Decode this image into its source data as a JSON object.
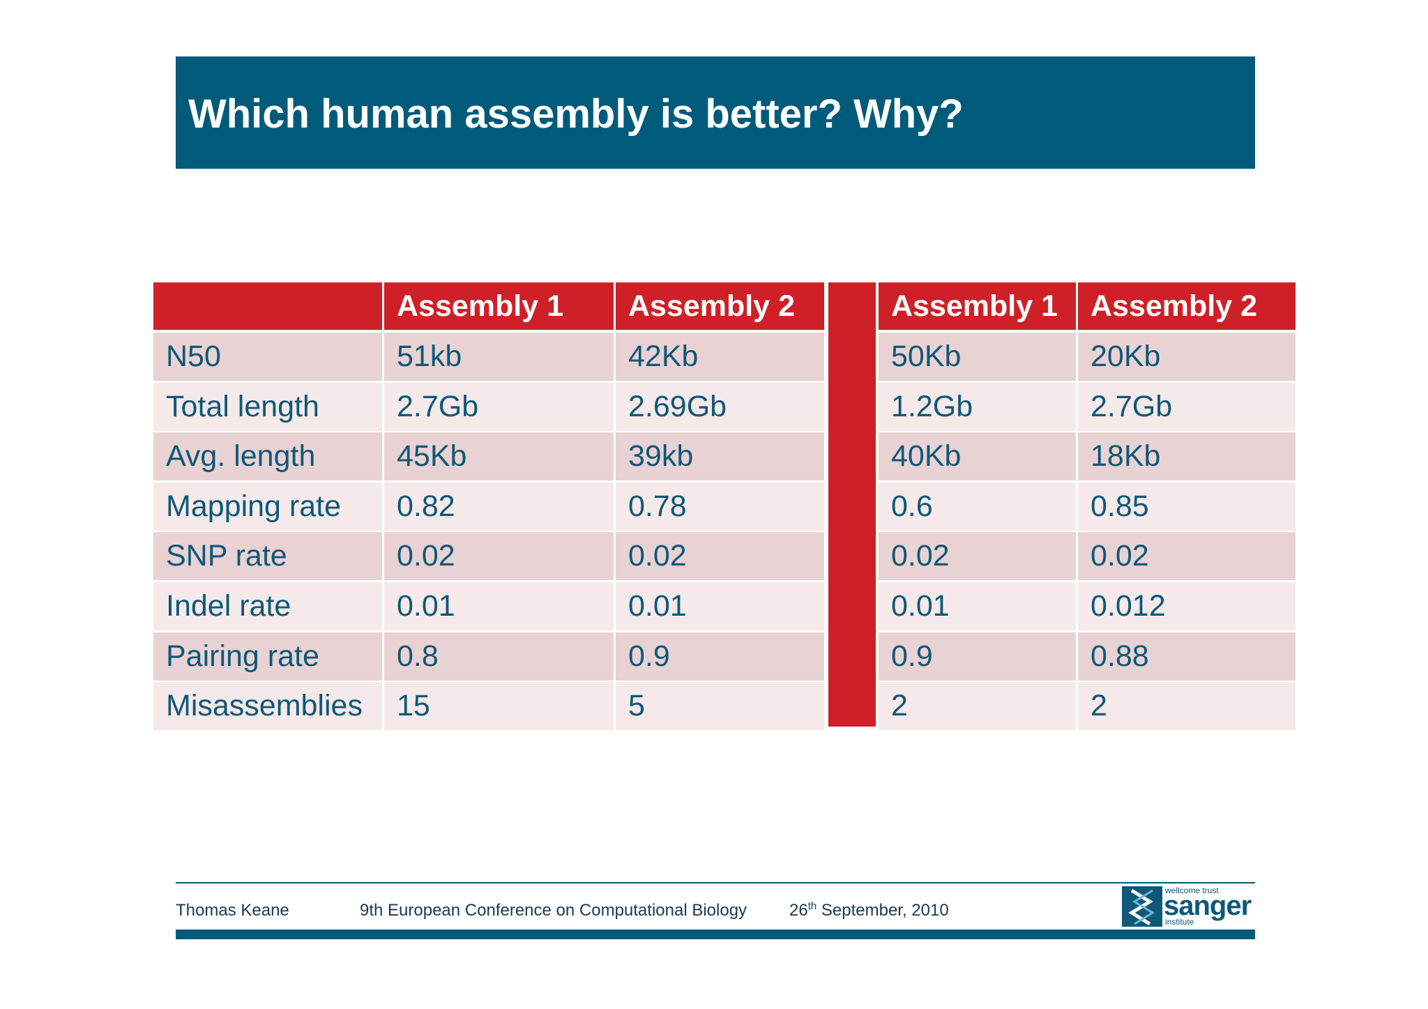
{
  "slide": {
    "title": "Which human assembly is better? Why?"
  },
  "table_left": {
    "headers": [
      "",
      "Assembly 1",
      "Assembly 2"
    ],
    "rows": [
      [
        "N50",
        "51kb",
        "42Kb"
      ],
      [
        "Total length",
        "2.7Gb",
        "2.69Gb"
      ],
      [
        "Avg. length",
        "45Kb",
        "39kb"
      ],
      [
        "Mapping rate",
        "0.82",
        "0.78"
      ],
      [
        "SNP rate",
        "0.02",
        "0.02"
      ],
      [
        "Indel rate",
        "0.01",
        "0.01"
      ],
      [
        "Pairing rate",
        "0.8",
        "0.9"
      ],
      [
        "Misassemblies",
        "15",
        "5"
      ]
    ]
  },
  "table_right": {
    "headers": [
      "Assembly 1",
      "Assembly 2"
    ],
    "rows": [
      [
        "50Kb",
        "20Kb"
      ],
      [
        "1.2Gb",
        "2.7Gb"
      ],
      [
        "40Kb",
        "18Kb"
      ],
      [
        "0.6",
        "0.85"
      ],
      [
        "0.02",
        "0.02"
      ],
      [
        "0.01",
        "0.012"
      ],
      [
        "0.9",
        "0.88"
      ],
      [
        "2",
        "2"
      ]
    ]
  },
  "footer": {
    "author": "Thomas Keane",
    "conference": "9th European Conference on Computational Biology",
    "date_day": "26",
    "date_suffix": "th",
    "date_rest": " September, 2010"
  },
  "logo": {
    "top_text": "wellcome trust",
    "main_text": "sanger",
    "bottom_text": "institute"
  },
  "colors": {
    "title_bar": "#005a7a",
    "header_red": "#cf2027",
    "row_dark": "#e9d2d4",
    "row_light": "#f5e9ea",
    "text_blue": "#0e5878"
  }
}
